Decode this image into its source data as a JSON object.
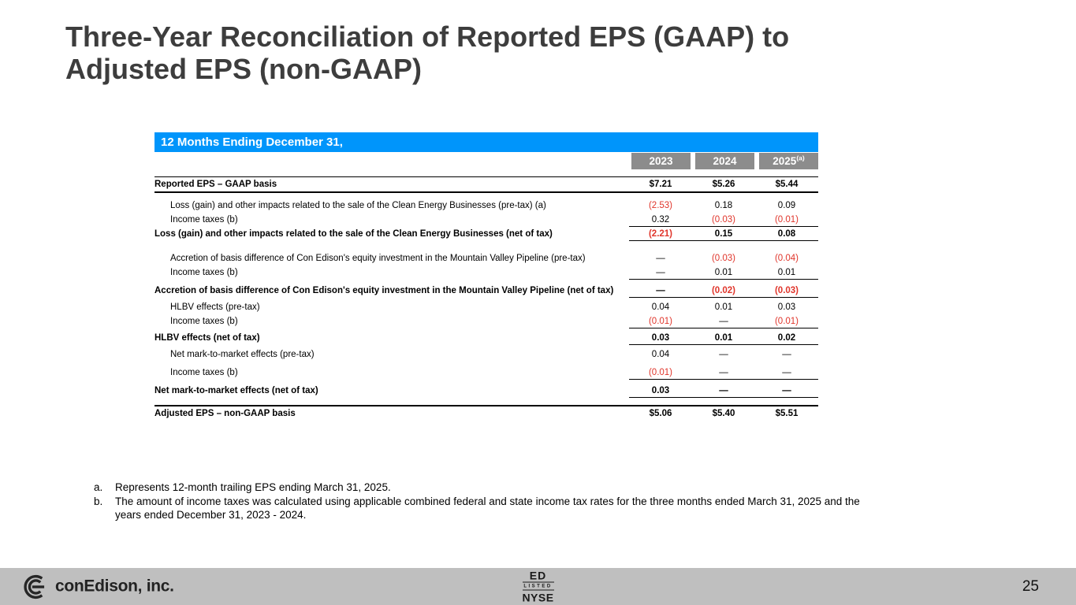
{
  "slide": {
    "title": "Three-Year Reconciliation of Reported EPS (GAAP) to Adjusted EPS (non-GAAP)",
    "page_number": "25"
  },
  "table": {
    "header_bar": "12 Months Ending December 31,",
    "columns": [
      {
        "label": "2023",
        "sup": ""
      },
      {
        "label": "2024",
        "sup": ""
      },
      {
        "label": "2025",
        "sup": "(a)"
      }
    ],
    "rows": [
      {
        "label": "Reported EPS – GAAP basis",
        "values": [
          "$7.21",
          "$5.26",
          "$5.44"
        ],
        "bold": true,
        "rule_above": "thin",
        "rule_below": "full",
        "gap_before": 0
      },
      {
        "label": "Loss (gain) and other impacts related to the sale of the Clean Energy Businesses (pre-tax) (a)",
        "values": [
          "(2.53)",
          "0.18",
          "0.09"
        ],
        "indent": true,
        "gap_before": 7
      },
      {
        "label": "Income taxes (b)",
        "values": [
          "0.32",
          "(0.03)",
          "(0.01)"
        ],
        "indent": true,
        "rule_below": "cols"
      },
      {
        "label": "Loss (gain) and other impacts related to the sale of the Clean Energy Businesses (net of tax)",
        "values": [
          "(2.21)",
          "0.15",
          "0.08"
        ],
        "bold": true,
        "rule_below": "cols"
      },
      {
        "label": "Accretion of basis difference of Con Edison's equity investment in the Mountain Valley Pipeline (pre-tax)",
        "values": [
          "—",
          "(0.03)",
          "(0.04)"
        ],
        "indent": true,
        "gap_before": 13
      },
      {
        "label": "Income taxes (b)",
        "values": [
          "—",
          "0.01",
          "0.01"
        ],
        "indent": true,
        "rule_below": "cols"
      },
      {
        "label": "Accretion of basis difference of Con Edison's equity investment in the Mountain Valley Pipeline (net of tax)",
        "values": [
          "—",
          "(0.02)",
          "(0.03)"
        ],
        "bold": true,
        "rule_below": "cols",
        "gap_before": 5
      },
      {
        "label": "HLBV effects (pre-tax)",
        "values": [
          "0.04",
          "0.01",
          "0.03"
        ],
        "indent": true,
        "gap_before": 3
      },
      {
        "label": "Income taxes (b)",
        "values": [
          "(0.01)",
          "—",
          "(0.01)"
        ],
        "indent": true,
        "rule_below": "cols"
      },
      {
        "label": "HLBV effects (net of tax)",
        "values": [
          "0.03",
          "0.01",
          "0.02"
        ],
        "bold": true,
        "rule_below": "cols",
        "gap_before": 3
      },
      {
        "label": "Net mark-to-market effects (pre-tax)",
        "values": [
          "0.04",
          "—",
          "—"
        ],
        "indent": true,
        "gap_before": 3
      },
      {
        "label": "Income taxes (b)",
        "values": [
          "(0.01)",
          "—",
          "—"
        ],
        "indent": true,
        "rule_below": "cols",
        "gap_before": 5
      },
      {
        "label": "Net mark-to-market effects (net of tax)",
        "values": [
          "0.03",
          "—",
          "—"
        ],
        "bold": true,
        "rule_below": "cols",
        "gap_before": 5
      },
      {
        "label": "Adjusted EPS – non-GAAP basis",
        "values": [
          "$5.06",
          "$5.40",
          "$5.51"
        ],
        "bold": true,
        "rule_above": "thick",
        "gap_before": 9
      }
    ]
  },
  "footnotes": [
    {
      "marker": "a.",
      "text": "Represents 12-month trailing EPS ending March 31, 2025."
    },
    {
      "marker": "b.",
      "text": "The amount of income taxes was calculated using applicable combined federal and state income tax rates for the three months ended March 31, 2025 and the years ended December 31, 2023 - 2024."
    }
  ],
  "footer": {
    "company": "conEdison, inc.",
    "nyse": {
      "ticker": "ED",
      "listed": "LISTED",
      "exchange": "NYSE"
    }
  },
  "colors": {
    "header_blue": "#0095FB",
    "year_gray": "#8C8C8C",
    "negative_red": "#E0352B",
    "footer_gray": "#BFBFBF"
  }
}
